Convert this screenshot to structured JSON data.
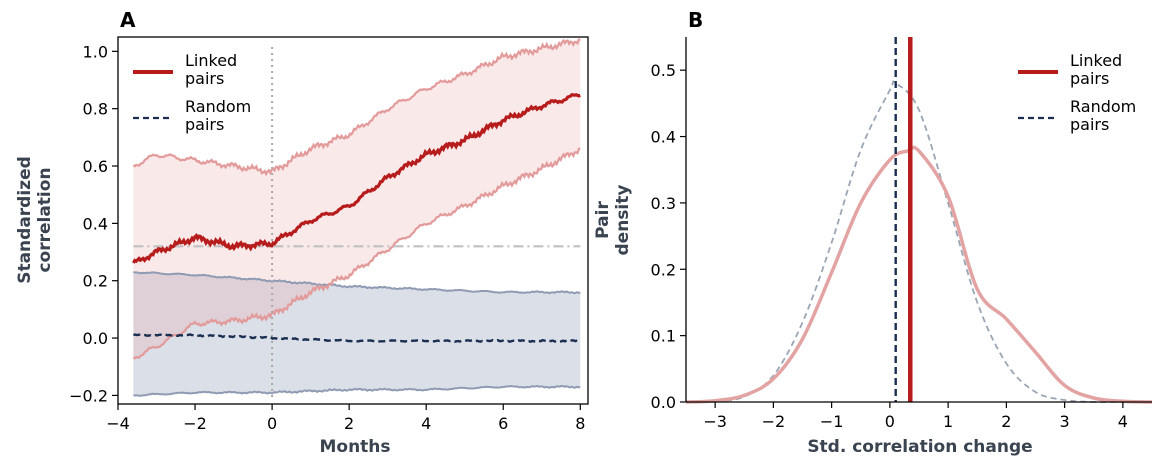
{
  "chart_data": [
    {
      "panel": "A",
      "type": "line",
      "xlabel": "Months",
      "ylabel_lines": [
        "Standardized",
        "correlation"
      ],
      "xlim": [
        -4,
        8.2
      ],
      "ylim": [
        -0.23,
        1.05
      ],
      "xticks": [
        -4,
        -2,
        0,
        2,
        4,
        6,
        8
      ],
      "xtick_labels": [
        "−4",
        "−2",
        "0",
        "2",
        "4",
        "6",
        "8"
      ],
      "yticks": [
        -0.2,
        0.0,
        0.2,
        0.4,
        0.6,
        0.8,
        1.0
      ],
      "ytick_labels": [
        "−0.2",
        "0.0",
        "0.2",
        "0.4",
        "0.6",
        "0.8",
        "1.0"
      ],
      "grid": false,
      "legend_position": "top-left",
      "vertical_reference_x": 0,
      "horizontal_reference_y": 0.32,
      "series": [
        {
          "name_lines": [
            "Linked",
            "pairs"
          ],
          "style": "solid",
          "color": "#b71c1c",
          "x": [
            -3.6,
            -3.0,
            -2.0,
            -1.0,
            0.0,
            1.0,
            2.0,
            3.0,
            4.0,
            5.0,
            6.0,
            7.0,
            8.0
          ],
          "y": [
            0.26,
            0.3,
            0.35,
            0.32,
            0.33,
            0.41,
            0.46,
            0.56,
            0.64,
            0.69,
            0.76,
            0.81,
            0.85
          ],
          "upper": [
            0.6,
            0.64,
            0.62,
            0.6,
            0.58,
            0.66,
            0.71,
            0.8,
            0.87,
            0.92,
            0.98,
            1.01,
            1.04
          ],
          "lower": [
            -0.07,
            -0.03,
            0.05,
            0.06,
            0.08,
            0.16,
            0.22,
            0.31,
            0.4,
            0.46,
            0.53,
            0.59,
            0.66
          ]
        },
        {
          "name_lines": [
            "Random",
            "pairs"
          ],
          "style": "dashed",
          "color": "#1a2e50",
          "x": [
            -3.6,
            -2.0,
            0.0,
            2.0,
            4.0,
            6.0,
            8.0
          ],
          "y": [
            0.01,
            0.01,
            0.0,
            -0.01,
            -0.01,
            -0.01,
            -0.01
          ],
          "upper": [
            0.23,
            0.22,
            0.2,
            0.18,
            0.17,
            0.16,
            0.16
          ],
          "lower": [
            -0.2,
            -0.19,
            -0.19,
            -0.18,
            -0.18,
            -0.17,
            -0.17
          ]
        }
      ]
    },
    {
      "panel": "B",
      "type": "line",
      "xlabel": "Std. correlation change",
      "ylabel_lines": [
        "Pair",
        "density"
      ],
      "xlim": [
        -3.5,
        4.5
      ],
      "ylim": [
        0.0,
        0.55
      ],
      "xticks": [
        -3,
        -2,
        -1,
        0,
        1,
        2,
        3,
        4
      ],
      "xtick_labels": [
        "−3",
        "−2",
        "−1",
        "0",
        "1",
        "2",
        "3",
        "4"
      ],
      "yticks": [
        0.0,
        0.1,
        0.2,
        0.3,
        0.4,
        0.5
      ],
      "ytick_labels": [
        "0.0",
        "0.1",
        "0.2",
        "0.3",
        "0.4",
        "0.5"
      ],
      "grid": false,
      "legend_position": "top-right",
      "series": [
        {
          "name_lines": [
            "Linked",
            "pairs"
          ],
          "style": "solid",
          "color": "#e3a3a3",
          "x": [
            -3.5,
            -3.0,
            -2.5,
            -2.0,
            -1.5,
            -1.0,
            -0.5,
            0.0,
            0.3,
            0.5,
            1.0,
            1.5,
            2.0,
            2.5,
            3.0,
            3.5,
            4.0,
            4.5
          ],
          "y": [
            0.0,
            0.002,
            0.01,
            0.035,
            0.095,
            0.195,
            0.3,
            0.365,
            0.378,
            0.378,
            0.31,
            0.17,
            0.125,
            0.075,
            0.025,
            0.006,
            0.001,
            0.0
          ],
          "mean_line_x": 0.35
        },
        {
          "name_lines": [
            "Random",
            "pairs"
          ],
          "style": "dashed",
          "color": "#1a2e50",
          "curve_color": "#9aa6b4",
          "x": [
            -3.5,
            -3.0,
            -2.5,
            -2.0,
            -1.5,
            -1.0,
            -0.5,
            0.0,
            0.1,
            0.5,
            1.0,
            1.5,
            2.0,
            2.5,
            3.0,
            3.5,
            4.0,
            4.5
          ],
          "y": [
            0.0,
            0.001,
            0.008,
            0.04,
            0.12,
            0.24,
            0.38,
            0.47,
            0.48,
            0.44,
            0.3,
            0.15,
            0.058,
            0.015,
            0.003,
            0.0,
            0.0,
            0.0
          ],
          "mean_line_x": 0.1
        }
      ]
    }
  ]
}
